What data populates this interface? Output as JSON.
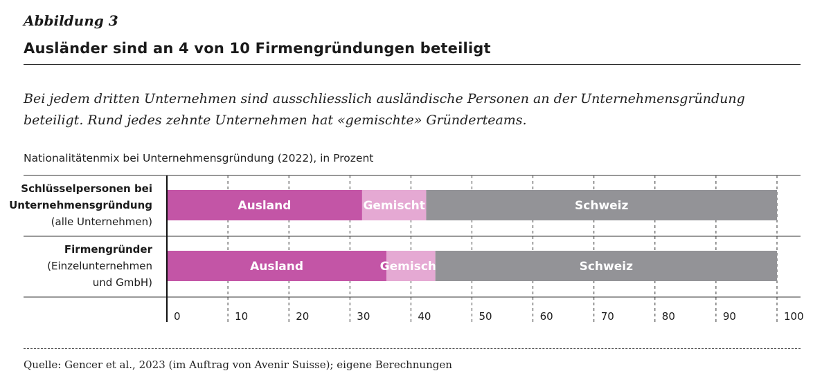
{
  "figure_label": "Abbildung 3",
  "title": "Ausländer sind an 4 von 10 Firmengründungen beteiligt",
  "lead": "Bei jedem dritten Unternehmen sind ausschliesslich ausländische Personen an der Unternehmensgründung beteiligt. Rund jedes zehnte Unternehmen hat «gemischte» Gründerteams.",
  "source": "Quelle: Gencer et al., 2023 (im Auftrag von Avenir Suisse); eigene Berechnungen",
  "colors": {
    "ausland": "#c355a6",
    "gemischt": "#e5a9d3",
    "schweiz": "#939397",
    "segment_text": "#ffffff",
    "grid": "#333333"
  },
  "chart_data": {
    "type": "bar",
    "orientation": "horizontal",
    "stacked": true,
    "title": "Nationalitätenmix bei Unternehmensgründung (2022), in Prozent",
    "xlim": [
      0,
      100
    ],
    "xticks": [
      "0",
      "10",
      "20",
      "30",
      "40",
      "50",
      "60",
      "70",
      "80",
      "90",
      "100"
    ],
    "categories": [
      [
        "Schlüsselpersonen bei",
        "Unternehmensgründung",
        "(alle Unternehmen)"
      ],
      [
        "Firmengründer",
        "(Einzelunternehmen",
        "und GmbH)"
      ]
    ],
    "series": [
      {
        "name": "Ausland",
        "color": "#c355a6",
        "values": [
          32,
          36
        ]
      },
      {
        "name": "Gemischt",
        "color": "#e5a9d3",
        "values": [
          10.5,
          8
        ]
      },
      {
        "name": "Schweiz",
        "color": "#939397",
        "values": [
          57.5,
          56
        ]
      }
    ]
  }
}
